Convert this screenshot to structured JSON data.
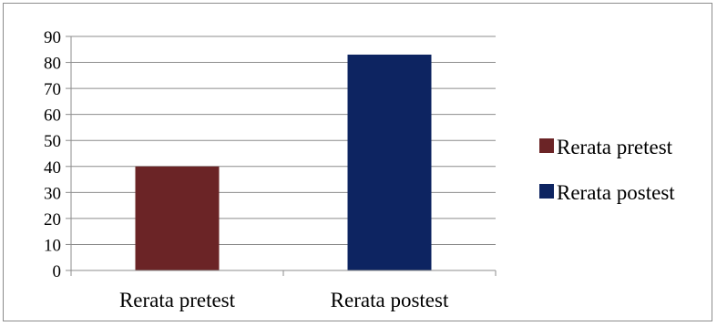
{
  "chart_data": {
    "type": "bar",
    "categories": [
      "Rerata pretest",
      "Rerata postest"
    ],
    "series": [
      {
        "name": "Rerata pretest",
        "values": [
          40,
          null
        ],
        "color": "#6b2426"
      },
      {
        "name": "Rerata postest",
        "values": [
          null,
          83
        ],
        "color": "#0d2461"
      }
    ],
    "yticks": [
      "0",
      "10",
      "20",
      "30",
      "40",
      "50",
      "60",
      "70",
      "80",
      "90"
    ],
    "ylim": [
      0,
      90
    ],
    "ytick_step": 10,
    "grid": true,
    "legend_position": "right",
    "title": "",
    "xlabel": "",
    "ylabel": ""
  }
}
